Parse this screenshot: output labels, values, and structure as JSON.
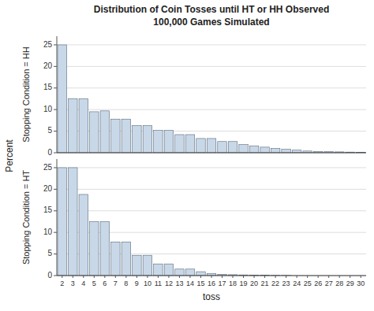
{
  "chart_data": [
    {
      "type": "bar",
      "title": "Distribution of Coin Tosses until HT or HH Observed",
      "subtitle": "100,000 Games Simulated",
      "annotations": [
        "Percent"
      ],
      "ylabel": "Stopping Condition = HH",
      "x": [
        2,
        3,
        4,
        5,
        6,
        7,
        8,
        9,
        10,
        11,
        12,
        13,
        14,
        15,
        16,
        17,
        18,
        19,
        20,
        21,
        22,
        23,
        24,
        25,
        26,
        27,
        28,
        29,
        30
      ],
      "values": [
        25.0,
        12.5,
        12.5,
        9.5,
        9.7,
        7.8,
        7.8,
        6.3,
        6.3,
        5.2,
        5.2,
        4.2,
        4.2,
        3.3,
        3.3,
        2.6,
        2.6,
        1.9,
        1.6,
        1.3,
        1.0,
        0.8,
        0.6,
        0.4,
        0.3,
        0.25,
        0.2,
        0.15,
        0.1
      ],
      "color": "#c8d8e8",
      "xlim": [
        1.5,
        30.5
      ],
      "ylim": [
        0,
        27
      ],
      "yticks": [
        0,
        5,
        10,
        15,
        20,
        25
      ],
      "grid": true,
      "tick_labels": "y"
    },
    {
      "type": "bar",
      "ylabel": "Stopping Condition = HT",
      "xlabel": "toss",
      "x": [
        2,
        3,
        4,
        5,
        6,
        7,
        8,
        9,
        10,
        11,
        12,
        13,
        14,
        15,
        16,
        17,
        18,
        19,
        20,
        21,
        22,
        23,
        24,
        25,
        26,
        27,
        28,
        29,
        30
      ],
      "values": [
        25.0,
        25.0,
        18.8,
        12.5,
        12.5,
        7.8,
        7.8,
        4.7,
        4.7,
        2.7,
        2.7,
        1.5,
        1.5,
        0.9,
        0.5,
        0.3,
        0.2,
        0.15,
        0.1,
        0.08,
        0.05,
        0.03,
        0.0,
        0.0,
        0.0,
        0.0,
        0.0,
        0.0,
        0.0
      ],
      "color": "#c8d8e8",
      "xlim": [
        1.5,
        30.5
      ],
      "xticks": [
        2,
        3,
        4,
        5,
        6,
        7,
        8,
        9,
        10,
        11,
        12,
        13,
        14,
        15,
        16,
        17,
        18,
        19,
        20,
        21,
        22,
        23,
        24,
        25,
        26,
        27,
        28,
        29,
        30
      ],
      "ylim": [
        0,
        27
      ],
      "yticks": [
        0,
        5,
        10,
        15,
        20,
        25
      ],
      "grid": true
    }
  ]
}
